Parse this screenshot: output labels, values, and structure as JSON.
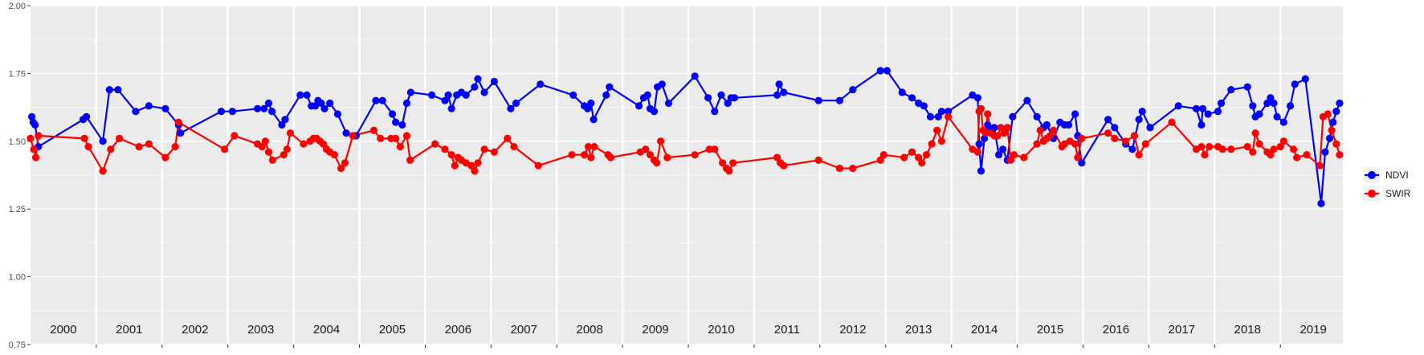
{
  "chart_data": {
    "type": "line",
    "title": "",
    "xlabel": "",
    "ylabel": "",
    "ylim": [
      0.75,
      2.0
    ],
    "xlim": [
      2000.0,
      2019.95
    ],
    "y_ticks": [
      "0.75",
      "1.00",
      "1.25",
      "1.50",
      "1.75",
      "2.00"
    ],
    "year_labels": [
      "2000",
      "2001",
      "2002",
      "2003",
      "2004",
      "2005",
      "2006",
      "2007",
      "2008",
      "2009",
      "2010",
      "2011",
      "2012",
      "2013",
      "2014",
      "2015",
      "2016",
      "2017",
      "2018",
      "2019"
    ],
    "grid": true,
    "legend_position": "right",
    "series": [
      {
        "name": "NDVI",
        "color": "#0000ff",
        "points": [
          [
            2000.02,
            1.59
          ],
          [
            2000.04,
            1.57
          ],
          [
            2000.07,
            1.56
          ],
          [
            2000.12,
            1.48
          ],
          [
            2000.8,
            1.58
          ],
          [
            2000.85,
            1.59
          ],
          [
            2001.1,
            1.5
          ],
          [
            2001.2,
            1.69
          ],
          [
            2001.33,
            1.69
          ],
          [
            2001.6,
            1.61
          ],
          [
            2001.8,
            1.63
          ],
          [
            2002.05,
            1.62
          ],
          [
            2002.25,
            1.56
          ],
          [
            2002.28,
            1.53
          ],
          [
            2002.9,
            1.61
          ],
          [
            2003.07,
            1.61
          ],
          [
            2003.45,
            1.62
          ],
          [
            2003.55,
            1.62
          ],
          [
            2003.62,
            1.64
          ],
          [
            2003.67,
            1.61
          ],
          [
            2003.82,
            1.56
          ],
          [
            2003.87,
            1.58
          ],
          [
            2004.1,
            1.67
          ],
          [
            2004.2,
            1.67
          ],
          [
            2004.27,
            1.63
          ],
          [
            2004.33,
            1.63
          ],
          [
            2004.37,
            1.65
          ],
          [
            2004.42,
            1.64
          ],
          [
            2004.47,
            1.62
          ],
          [
            2004.55,
            1.64
          ],
          [
            2004.67,
            1.6
          ],
          [
            2004.8,
            1.53
          ],
          [
            2004.95,
            1.52
          ],
          [
            2005.25,
            1.65
          ],
          [
            2005.35,
            1.65
          ],
          [
            2005.5,
            1.6
          ],
          [
            2005.55,
            1.57
          ],
          [
            2005.65,
            1.56
          ],
          [
            2005.72,
            1.64
          ],
          [
            2005.78,
            1.68
          ],
          [
            2006.1,
            1.67
          ],
          [
            2006.3,
            1.65
          ],
          [
            2006.35,
            1.67
          ],
          [
            2006.4,
            1.62
          ],
          [
            2006.48,
            1.67
          ],
          [
            2006.55,
            1.68
          ],
          [
            2006.62,
            1.67
          ],
          [
            2006.75,
            1.7
          ],
          [
            2006.8,
            1.73
          ],
          [
            2006.9,
            1.68
          ],
          [
            2007.05,
            1.72
          ],
          [
            2007.3,
            1.62
          ],
          [
            2007.38,
            1.64
          ],
          [
            2007.75,
            1.71
          ],
          [
            2008.25,
            1.67
          ],
          [
            2008.42,
            1.63
          ],
          [
            2008.47,
            1.62
          ],
          [
            2008.52,
            1.64
          ],
          [
            2008.56,
            1.58
          ],
          [
            2008.75,
            1.67
          ],
          [
            2008.8,
            1.7
          ],
          [
            2009.25,
            1.63
          ],
          [
            2009.32,
            1.66
          ],
          [
            2009.38,
            1.67
          ],
          [
            2009.42,
            1.62
          ],
          [
            2009.48,
            1.61
          ],
          [
            2009.53,
            1.7
          ],
          [
            2009.6,
            1.71
          ],
          [
            2009.7,
            1.64
          ],
          [
            2010.1,
            1.74
          ],
          [
            2010.3,
            1.66
          ],
          [
            2010.4,
            1.61
          ],
          [
            2010.5,
            1.67
          ],
          [
            2010.6,
            1.64
          ],
          [
            2010.65,
            1.66
          ],
          [
            2010.7,
            1.66
          ],
          [
            2011.35,
            1.67
          ],
          [
            2011.38,
            1.71
          ],
          [
            2011.45,
            1.68
          ],
          [
            2011.98,
            1.65
          ],
          [
            2012.3,
            1.65
          ],
          [
            2012.5,
            1.69
          ],
          [
            2012.92,
            1.76
          ],
          [
            2013.02,
            1.76
          ],
          [
            2013.25,
            1.68
          ],
          [
            2013.4,
            1.66
          ],
          [
            2013.5,
            1.64
          ],
          [
            2013.58,
            1.63
          ],
          [
            2013.68,
            1.59
          ],
          [
            2013.8,
            1.59
          ],
          [
            2013.85,
            1.61
          ],
          [
            2013.95,
            1.61
          ],
          [
            2014.32,
            1.67
          ],
          [
            2014.4,
            1.66
          ],
          [
            2014.42,
            1.49
          ],
          [
            2014.45,
            1.39
          ],
          [
            2014.5,
            1.51
          ],
          [
            2014.55,
            1.56
          ],
          [
            2014.6,
            1.54
          ],
          [
            2014.65,
            1.55
          ],
          [
            2014.72,
            1.45
          ],
          [
            2014.78,
            1.47
          ],
          [
            2014.85,
            1.43
          ],
          [
            2014.93,
            1.59
          ],
          [
            2015.15,
            1.65
          ],
          [
            2015.3,
            1.59
          ],
          [
            2015.4,
            1.55
          ],
          [
            2015.45,
            1.56
          ],
          [
            2015.55,
            1.51
          ],
          [
            2015.65,
            1.57
          ],
          [
            2015.72,
            1.56
          ],
          [
            2015.78,
            1.56
          ],
          [
            2015.88,
            1.6
          ],
          [
            2015.92,
            1.52
          ],
          [
            2015.98,
            1.42
          ],
          [
            2016.38,
            1.58
          ],
          [
            2016.48,
            1.55
          ],
          [
            2016.65,
            1.49
          ],
          [
            2016.75,
            1.47
          ],
          [
            2016.85,
            1.58
          ],
          [
            2016.9,
            1.61
          ],
          [
            2017.02,
            1.55
          ],
          [
            2017.45,
            1.63
          ],
          [
            2017.72,
            1.62
          ],
          [
            2017.8,
            1.56
          ],
          [
            2017.82,
            1.62
          ],
          [
            2017.9,
            1.6
          ],
          [
            2018.05,
            1.61
          ],
          [
            2018.1,
            1.64
          ],
          [
            2018.25,
            1.69
          ],
          [
            2018.5,
            1.7
          ],
          [
            2018.58,
            1.63
          ],
          [
            2018.62,
            1.59
          ],
          [
            2018.68,
            1.6
          ],
          [
            2018.8,
            1.64
          ],
          [
            2018.85,
            1.66
          ],
          [
            2018.9,
            1.64
          ],
          [
            2018.95,
            1.59
          ],
          [
            2019.05,
            1.57
          ],
          [
            2019.15,
            1.63
          ],
          [
            2019.22,
            1.71
          ],
          [
            2019.38,
            1.73
          ],
          [
            2019.62,
            1.27
          ],
          [
            2019.68,
            1.46
          ],
          [
            2019.75,
            1.51
          ],
          [
            2019.8,
            1.57
          ],
          [
            2019.85,
            1.61
          ],
          [
            2019.9,
            1.64
          ]
        ]
      },
      {
        "name": "SWIR",
        "color": "#ff0000",
        "points": [
          [
            2000.0,
            1.51
          ],
          [
            2000.05,
            1.47
          ],
          [
            2000.08,
            1.44
          ],
          [
            2000.12,
            1.52
          ],
          [
            2000.82,
            1.51
          ],
          [
            2000.88,
            1.48
          ],
          [
            2001.1,
            1.39
          ],
          [
            2001.22,
            1.47
          ],
          [
            2001.35,
            1.51
          ],
          [
            2001.65,
            1.48
          ],
          [
            2001.8,
            1.49
          ],
          [
            2002.05,
            1.44
          ],
          [
            2002.2,
            1.48
          ],
          [
            2002.25,
            1.57
          ],
          [
            2002.95,
            1.47
          ],
          [
            2003.1,
            1.52
          ],
          [
            2003.45,
            1.49
          ],
          [
            2003.52,
            1.48
          ],
          [
            2003.57,
            1.5
          ],
          [
            2003.62,
            1.46
          ],
          [
            2003.68,
            1.43
          ],
          [
            2003.85,
            1.45
          ],
          [
            2003.9,
            1.47
          ],
          [
            2003.95,
            1.53
          ],
          [
            2004.15,
            1.49
          ],
          [
            2004.25,
            1.5
          ],
          [
            2004.3,
            1.51
          ],
          [
            2004.35,
            1.51
          ],
          [
            2004.4,
            1.5
          ],
          [
            2004.45,
            1.49
          ],
          [
            2004.5,
            1.47
          ],
          [
            2004.55,
            1.46
          ],
          [
            2004.62,
            1.45
          ],
          [
            2004.72,
            1.4
          ],
          [
            2004.78,
            1.42
          ],
          [
            2004.9,
            1.52
          ],
          [
            2005.22,
            1.54
          ],
          [
            2005.32,
            1.51
          ],
          [
            2005.48,
            1.51
          ],
          [
            2005.55,
            1.51
          ],
          [
            2005.62,
            1.48
          ],
          [
            2005.72,
            1.52
          ],
          [
            2005.77,
            1.43
          ],
          [
            2006.15,
            1.49
          ],
          [
            2006.3,
            1.47
          ],
          [
            2006.4,
            1.45
          ],
          [
            2006.45,
            1.41
          ],
          [
            2006.5,
            1.44
          ],
          [
            2006.55,
            1.43
          ],
          [
            2006.62,
            1.42
          ],
          [
            2006.7,
            1.41
          ],
          [
            2006.75,
            1.39
          ],
          [
            2006.8,
            1.42
          ],
          [
            2006.9,
            1.47
          ],
          [
            2007.05,
            1.46
          ],
          [
            2007.25,
            1.51
          ],
          [
            2007.35,
            1.48
          ],
          [
            2007.72,
            1.41
          ],
          [
            2008.23,
            1.45
          ],
          [
            2008.42,
            1.45
          ],
          [
            2008.48,
            1.48
          ],
          [
            2008.52,
            1.44
          ],
          [
            2008.57,
            1.48
          ],
          [
            2008.78,
            1.45
          ],
          [
            2008.82,
            1.44
          ],
          [
            2009.27,
            1.46
          ],
          [
            2009.35,
            1.47
          ],
          [
            2009.42,
            1.45
          ],
          [
            2009.48,
            1.43
          ],
          [
            2009.52,
            1.42
          ],
          [
            2009.58,
            1.5
          ],
          [
            2009.68,
            1.44
          ],
          [
            2010.1,
            1.45
          ],
          [
            2010.32,
            1.47
          ],
          [
            2010.4,
            1.47
          ],
          [
            2010.52,
            1.42
          ],
          [
            2010.58,
            1.4
          ],
          [
            2010.62,
            1.39
          ],
          [
            2010.68,
            1.42
          ],
          [
            2011.35,
            1.44
          ],
          [
            2011.4,
            1.42
          ],
          [
            2011.45,
            1.41
          ],
          [
            2011.98,
            1.43
          ],
          [
            2012.3,
            1.4
          ],
          [
            2012.5,
            1.4
          ],
          [
            2012.92,
            1.43
          ],
          [
            2012.97,
            1.45
          ],
          [
            2013.28,
            1.44
          ],
          [
            2013.4,
            1.46
          ],
          [
            2013.5,
            1.44
          ],
          [
            2013.55,
            1.42
          ],
          [
            2013.62,
            1.45
          ],
          [
            2013.7,
            1.49
          ],
          [
            2013.78,
            1.54
          ],
          [
            2013.85,
            1.5
          ],
          [
            2013.95,
            1.59
          ],
          [
            2014.32,
            1.47
          ],
          [
            2014.4,
            1.46
          ],
          [
            2014.42,
            1.61
          ],
          [
            2014.45,
            1.62
          ],
          [
            2014.48,
            1.54
          ],
          [
            2014.52,
            1.53
          ],
          [
            2014.55,
            1.6
          ],
          [
            2014.6,
            1.53
          ],
          [
            2014.65,
            1.52
          ],
          [
            2014.7,
            1.52
          ],
          [
            2014.75,
            1.55
          ],
          [
            2014.8,
            1.53
          ],
          [
            2014.85,
            1.55
          ],
          [
            2014.9,
            1.43
          ],
          [
            2014.95,
            1.45
          ],
          [
            2015.1,
            1.44
          ],
          [
            2015.3,
            1.49
          ],
          [
            2015.35,
            1.54
          ],
          [
            2015.4,
            1.5
          ],
          [
            2015.45,
            1.51
          ],
          [
            2015.5,
            1.52
          ],
          [
            2015.55,
            1.54
          ],
          [
            2015.68,
            1.48
          ],
          [
            2015.72,
            1.49
          ],
          [
            2015.8,
            1.5
          ],
          [
            2015.88,
            1.49
          ],
          [
            2015.92,
            1.44
          ],
          [
            2015.98,
            1.51
          ],
          [
            2016.38,
            1.53
          ],
          [
            2016.48,
            1.51
          ],
          [
            2016.65,
            1.5
          ],
          [
            2016.78,
            1.52
          ],
          [
            2016.85,
            1.45
          ],
          [
            2016.95,
            1.49
          ],
          [
            2017.35,
            1.57
          ],
          [
            2017.72,
            1.47
          ],
          [
            2017.8,
            1.48
          ],
          [
            2017.85,
            1.45
          ],
          [
            2017.92,
            1.48
          ],
          [
            2018.05,
            1.48
          ],
          [
            2018.12,
            1.47
          ],
          [
            2018.25,
            1.47
          ],
          [
            2018.5,
            1.48
          ],
          [
            2018.58,
            1.46
          ],
          [
            2018.62,
            1.53
          ],
          [
            2018.68,
            1.49
          ],
          [
            2018.8,
            1.46
          ],
          [
            2018.85,
            1.45
          ],
          [
            2018.9,
            1.47
          ],
          [
            2019.0,
            1.48
          ],
          [
            2019.05,
            1.5
          ],
          [
            2019.2,
            1.47
          ],
          [
            2019.25,
            1.44
          ],
          [
            2019.4,
            1.45
          ],
          [
            2019.6,
            1.41
          ],
          [
            2019.65,
            1.59
          ],
          [
            2019.72,
            1.6
          ],
          [
            2019.78,
            1.54
          ],
          [
            2019.85,
            1.49
          ],
          [
            2019.9,
            1.45
          ]
        ]
      }
    ]
  }
}
